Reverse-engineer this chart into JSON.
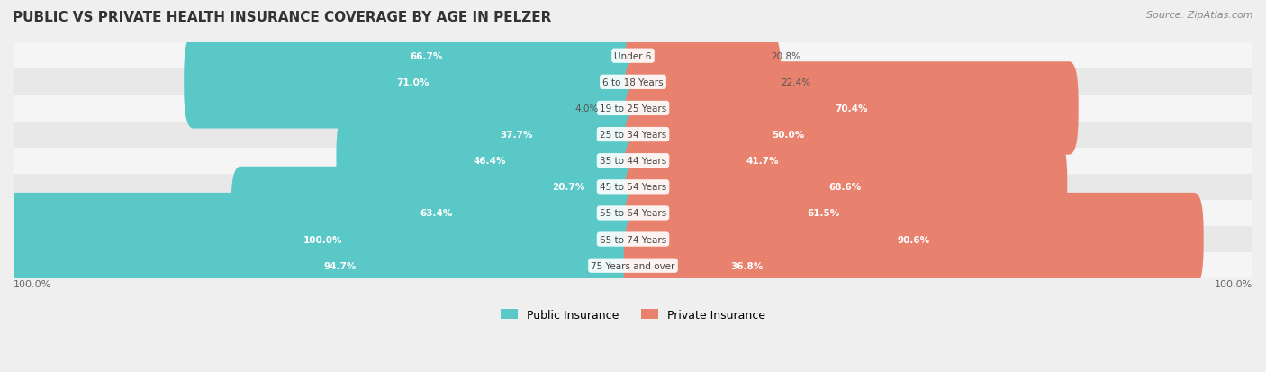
{
  "title": "PUBLIC VS PRIVATE HEALTH INSURANCE COVERAGE BY AGE IN PELZER",
  "source": "Source: ZipAtlas.com",
  "categories": [
    "Under 6",
    "6 to 18 Years",
    "19 to 25 Years",
    "25 to 34 Years",
    "35 to 44 Years",
    "45 to 54 Years",
    "55 to 64 Years",
    "65 to 74 Years",
    "75 Years and over"
  ],
  "public": [
    66.7,
    71.0,
    4.0,
    37.7,
    46.4,
    20.7,
    63.4,
    100.0,
    94.7
  ],
  "private": [
    20.8,
    22.4,
    70.4,
    50.0,
    41.7,
    68.6,
    61.5,
    90.6,
    36.8
  ],
  "public_color": "#5BC8C8",
  "private_color": "#E8826E",
  "bg_color": "#EFEFEF",
  "row_bg_color_odd": "#F5F5F5",
  "row_bg_color_even": "#E8E8E8",
  "title_color": "#333333",
  "label_color": "#555555",
  "max_value": 100.0,
  "bar_height": 0.55,
  "figsize": [
    14.06,
    4.14
  ],
  "dpi": 100
}
